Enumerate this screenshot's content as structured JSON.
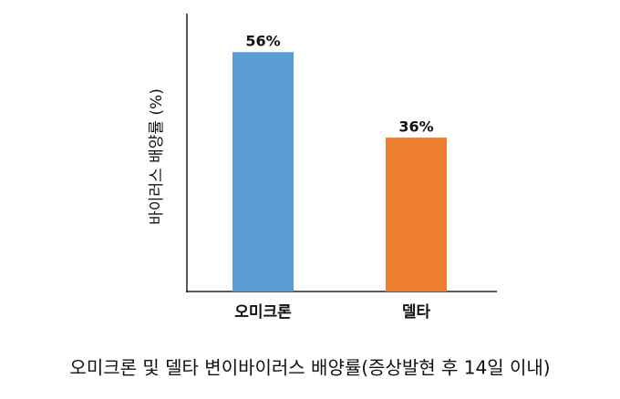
{
  "chart_data": {
    "type": "bar",
    "title": "오미크론 및 델타 변이바이러스 배양률(증상발현 후 14일 이내)",
    "y_label": "바이러스 배양률 (%)",
    "categories": [
      "오미크론",
      "델타"
    ],
    "values": [
      56,
      36
    ],
    "value_labels": [
      "56%",
      "36%"
    ],
    "colors": [
      "#5b9bd5",
      "#ed7d31"
    ],
    "ylim": [
      0,
      65
    ]
  }
}
